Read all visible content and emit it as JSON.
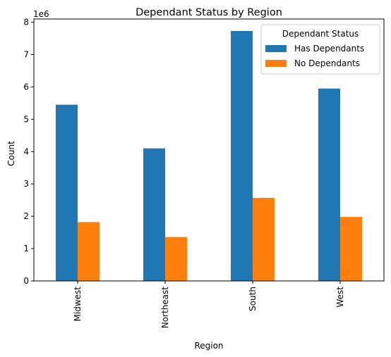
{
  "chart_data": {
    "type": "bar",
    "title": "Dependant Status by Region",
    "xlabel": "Region",
    "ylabel": "Count",
    "y_offset_label": "1e6",
    "y_scale": 1000000,
    "categories": [
      "Midwest",
      "Northeast",
      "South",
      "West"
    ],
    "series": [
      {
        "name": "Has Dependants",
        "color": "#1f77b4",
        "values": [
          5450000,
          4100000,
          7730000,
          5950000
        ]
      },
      {
        "name": "No Dependants",
        "color": "#ff7f0e",
        "values": [
          1820000,
          1360000,
          2570000,
          1980000
        ]
      }
    ],
    "ylim": [
      0,
      8100000.0
    ],
    "yticks": [
      0,
      1,
      2,
      3,
      4,
      5,
      6,
      7,
      8
    ],
    "legend": {
      "title": "Dependant Status",
      "placement": "top-right"
    },
    "grid": false
  }
}
